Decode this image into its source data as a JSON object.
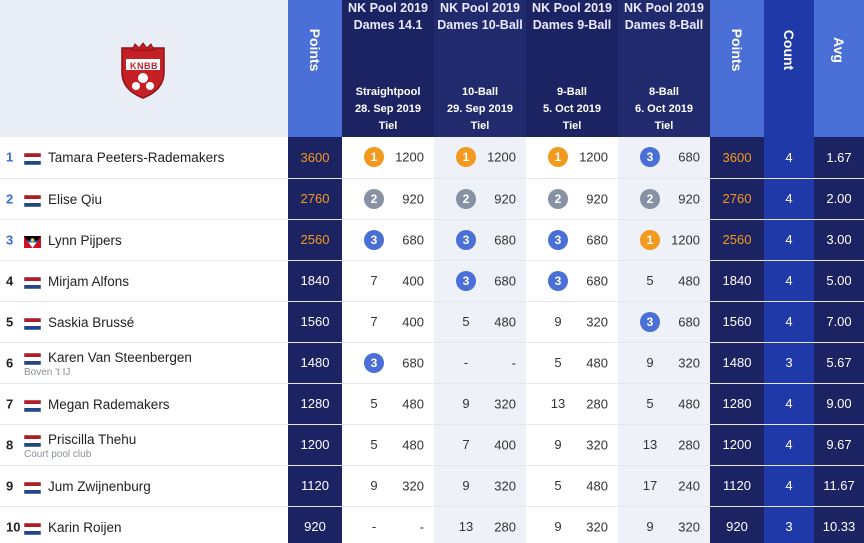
{
  "header": {
    "logo_text": "KNBB",
    "points_label": "Points",
    "count_label": "Count",
    "avg_label": "Avg",
    "events": [
      {
        "title": "NK Pool 2019 Dames 14.1",
        "discipline": "Straightpool",
        "date": "28. Sep 2019",
        "location": "Tiel"
      },
      {
        "title": "NK Pool 2019 Dames 10-Ball",
        "discipline": "10-Ball",
        "date": "29. Sep 2019",
        "location": "Tiel"
      },
      {
        "title": "NK Pool 2019 Dames 9-Ball",
        "discipline": "9-Ball",
        "date": "5. Oct 2019",
        "location": "Tiel"
      },
      {
        "title": "NK Pool 2019 Dames 8-Ball",
        "discipline": "8-Ball",
        "date": "6. Oct 2019",
        "location": "Tiel"
      }
    ]
  },
  "colors": {
    "navy": "#1c2363",
    "blue": "#4a6fd6",
    "count_blue": "#1f3aa8",
    "gold": "#f39a1e",
    "silver": "#8791a4",
    "bronze": "#4a6fd6",
    "header_bg": "#e8edf6"
  },
  "rows": [
    {
      "rank": "1",
      "flag": "netherlands-flag",
      "name": "Tamara Peeters-Rademakers",
      "club": "",
      "points": "3600",
      "results": [
        {
          "place": "1",
          "points": "1200"
        },
        {
          "place": "1",
          "points": "1200"
        },
        {
          "place": "1",
          "points": "1200"
        },
        {
          "place": "3",
          "points": "680"
        }
      ],
      "points_right": "3600",
      "count": "4",
      "avg": "1.67"
    },
    {
      "rank": "2",
      "flag": "netherlands-flag",
      "name": "Elise Qiu",
      "club": "",
      "points": "2760",
      "results": [
        {
          "place": "2",
          "points": "920"
        },
        {
          "place": "2",
          "points": "920"
        },
        {
          "place": "2",
          "points": "920"
        },
        {
          "place": "2",
          "points": "920"
        }
      ],
      "points_right": "2760",
      "count": "4",
      "avg": "2.00"
    },
    {
      "rank": "3",
      "flag": "antigua-flag",
      "name": "Lynn Pijpers",
      "club": "",
      "points": "2560",
      "results": [
        {
          "place": "3",
          "points": "680"
        },
        {
          "place": "3",
          "points": "680"
        },
        {
          "place": "3",
          "points": "680"
        },
        {
          "place": "1",
          "points": "1200"
        }
      ],
      "points_right": "2560",
      "count": "4",
      "avg": "3.00"
    },
    {
      "rank": "4",
      "flag": "netherlands-flag",
      "name": "Mirjam Alfons",
      "club": "",
      "points": "1840",
      "results": [
        {
          "place": "7",
          "points": "400"
        },
        {
          "place": "3",
          "points": "680"
        },
        {
          "place": "3",
          "points": "680"
        },
        {
          "place": "5",
          "points": "480"
        }
      ],
      "points_right": "1840",
      "count": "4",
      "avg": "5.00"
    },
    {
      "rank": "5",
      "flag": "netherlands-flag",
      "name": "Saskia Brussé",
      "club": "",
      "points": "1560",
      "results": [
        {
          "place": "7",
          "points": "400"
        },
        {
          "place": "5",
          "points": "480"
        },
        {
          "place": "9",
          "points": "320"
        },
        {
          "place": "3",
          "points": "680"
        }
      ],
      "points_right": "1560",
      "count": "4",
      "avg": "7.00"
    },
    {
      "rank": "6",
      "flag": "netherlands-flag",
      "name": "Karen Van Steenbergen",
      "club": "Boven 't IJ",
      "points": "1480",
      "results": [
        {
          "place": "3",
          "points": "680"
        },
        {
          "place": "-",
          "points": "-"
        },
        {
          "place": "5",
          "points": "480"
        },
        {
          "place": "9",
          "points": "320"
        }
      ],
      "points_right": "1480",
      "count": "3",
      "avg": "5.67"
    },
    {
      "rank": "7",
      "flag": "netherlands-flag",
      "name": "Megan Rademakers",
      "club": "",
      "points": "1280",
      "results": [
        {
          "place": "5",
          "points": "480"
        },
        {
          "place": "9",
          "points": "320"
        },
        {
          "place": "13",
          "points": "280"
        },
        {
          "place": "5",
          "points": "480"
        }
      ],
      "points_right": "1280",
      "count": "4",
      "avg": "9.00"
    },
    {
      "rank": "8",
      "flag": "netherlands-flag",
      "name": "Priscilla Thehu",
      "club": "Court pool club",
      "points": "1200",
      "results": [
        {
          "place": "5",
          "points": "480"
        },
        {
          "place": "7",
          "points": "400"
        },
        {
          "place": "9",
          "points": "320"
        },
        {
          "place": "13",
          "points": "280"
        }
      ],
      "points_right": "1200",
      "count": "4",
      "avg": "9.67"
    },
    {
      "rank": "9",
      "flag": "netherlands-flag",
      "name": "Jum Zwijnenburg",
      "club": "",
      "points": "1120",
      "results": [
        {
          "place": "9",
          "points": "320"
        },
        {
          "place": "9",
          "points": "320"
        },
        {
          "place": "5",
          "points": "480"
        },
        {
          "place": "17",
          "points": "240"
        }
      ],
      "points_right": "1120",
      "count": "4",
      "avg": "11.67"
    },
    {
      "rank": "10",
      "flag": "netherlands-flag",
      "name": "Karin Roijen",
      "club": "",
      "points": "920",
      "results": [
        {
          "place": "-",
          "points": "-"
        },
        {
          "place": "13",
          "points": "280"
        },
        {
          "place": "9",
          "points": "320"
        },
        {
          "place": "9",
          "points": "320"
        }
      ],
      "points_right": "920",
      "count": "3",
      "avg": "10.33"
    }
  ]
}
